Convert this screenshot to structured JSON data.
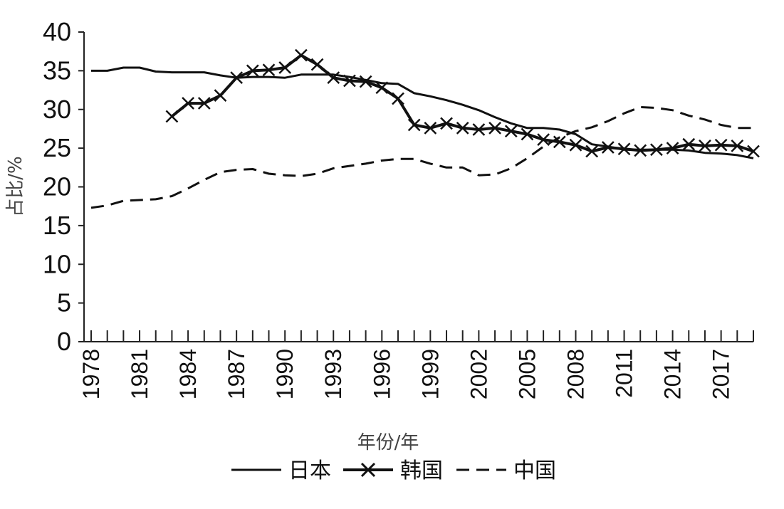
{
  "chart_data": {
    "type": "line",
    "title": "",
    "xlabel": "年份/年",
    "ylabel": "占比/%",
    "ylim": [
      0,
      40
    ],
    "yticks": [
      0,
      5,
      10,
      15,
      20,
      25,
      30,
      35,
      40
    ],
    "xlim": [
      1978,
      2019
    ],
    "xtick_labels": [
      "1978",
      "1981",
      "1984",
      "1987",
      "1990",
      "1993",
      "1996",
      "1999",
      "2002",
      "2005",
      "2008",
      "2011",
      "2014",
      "2017"
    ],
    "grid": false,
    "legend_position": "bottom",
    "series": [
      {
        "name": "日本",
        "style": "solid",
        "color": "#111111",
        "x": [
          1978,
          1979,
          1980,
          1981,
          1982,
          1983,
          1984,
          1985,
          1986,
          1987,
          1988,
          1989,
          1990,
          1991,
          1992,
          1993,
          1994,
          1995,
          1996,
          1997,
          1998,
          1999,
          2000,
          2001,
          2002,
          2003,
          2004,
          2005,
          2006,
          2007,
          2008,
          2009,
          2010,
          2011,
          2012,
          2013,
          2014,
          2015,
          2016,
          2017,
          2018,
          2019
        ],
        "y": [
          35.0,
          35.0,
          35.4,
          35.4,
          34.9,
          34.8,
          34.8,
          34.8,
          34.4,
          34.1,
          34.2,
          34.2,
          34.1,
          34.5,
          34.5,
          34.5,
          34.2,
          33.8,
          33.4,
          33.3,
          32.1,
          31.7,
          31.2,
          30.6,
          29.9,
          29.0,
          28.2,
          27.6,
          27.6,
          27.4,
          26.8,
          25.5,
          25.2,
          24.8,
          24.8,
          24.8,
          24.8,
          24.7,
          24.4,
          24.3,
          24.1,
          23.7
        ]
      },
      {
        "name": "韩国",
        "style": "solid-x",
        "color": "#111111",
        "x": [
          1983,
          1984,
          1985,
          1986,
          1987,
          1988,
          1989,
          1990,
          1991,
          1992,
          1993,
          1994,
          1995,
          1996,
          1997,
          1998,
          1999,
          2000,
          2001,
          2002,
          2003,
          2004,
          2005,
          2006,
          2007,
          2008,
          2009,
          2010,
          2011,
          2012,
          2013,
          2014,
          2015,
          2016,
          2017,
          2018,
          2019
        ],
        "y": [
          29.1,
          30.8,
          30.8,
          31.8,
          34.1,
          35.0,
          35.1,
          35.4,
          37.0,
          35.8,
          34.1,
          33.7,
          33.6,
          32.8,
          31.4,
          28.0,
          27.6,
          28.2,
          27.6,
          27.4,
          27.6,
          27.2,
          26.8,
          26.1,
          25.8,
          25.4,
          24.6,
          25.1,
          24.9,
          24.7,
          24.8,
          25.0,
          25.5,
          25.3,
          25.4,
          25.3,
          24.6
        ]
      },
      {
        "name": "中国",
        "style": "dashed",
        "color": "#111111",
        "x": [
          1978,
          1979,
          1980,
          1981,
          1982,
          1983,
          1984,
          1985,
          1986,
          1987,
          1988,
          1989,
          1990,
          1991,
          1992,
          1993,
          1994,
          1995,
          1996,
          1997,
          1998,
          1999,
          2000,
          2001,
          2002,
          2003,
          2004,
          2005,
          2006,
          2007,
          2008,
          2009,
          2010,
          2011,
          2012,
          2013,
          2014,
          2015,
          2016,
          2017,
          2018,
          2019
        ],
        "y": [
          17.3,
          17.6,
          18.2,
          18.3,
          18.4,
          18.8,
          19.8,
          20.9,
          21.9,
          22.2,
          22.3,
          21.7,
          21.5,
          21.4,
          21.7,
          22.4,
          22.7,
          23.0,
          23.4,
          23.6,
          23.6,
          23.0,
          22.5,
          22.5,
          21.5,
          21.6,
          22.4,
          23.7,
          25.2,
          26.4,
          27.2,
          27.7,
          28.5,
          29.5,
          30.3,
          30.2,
          29.9,
          29.2,
          28.7,
          28.0,
          27.6,
          27.6
        ]
      }
    ]
  }
}
